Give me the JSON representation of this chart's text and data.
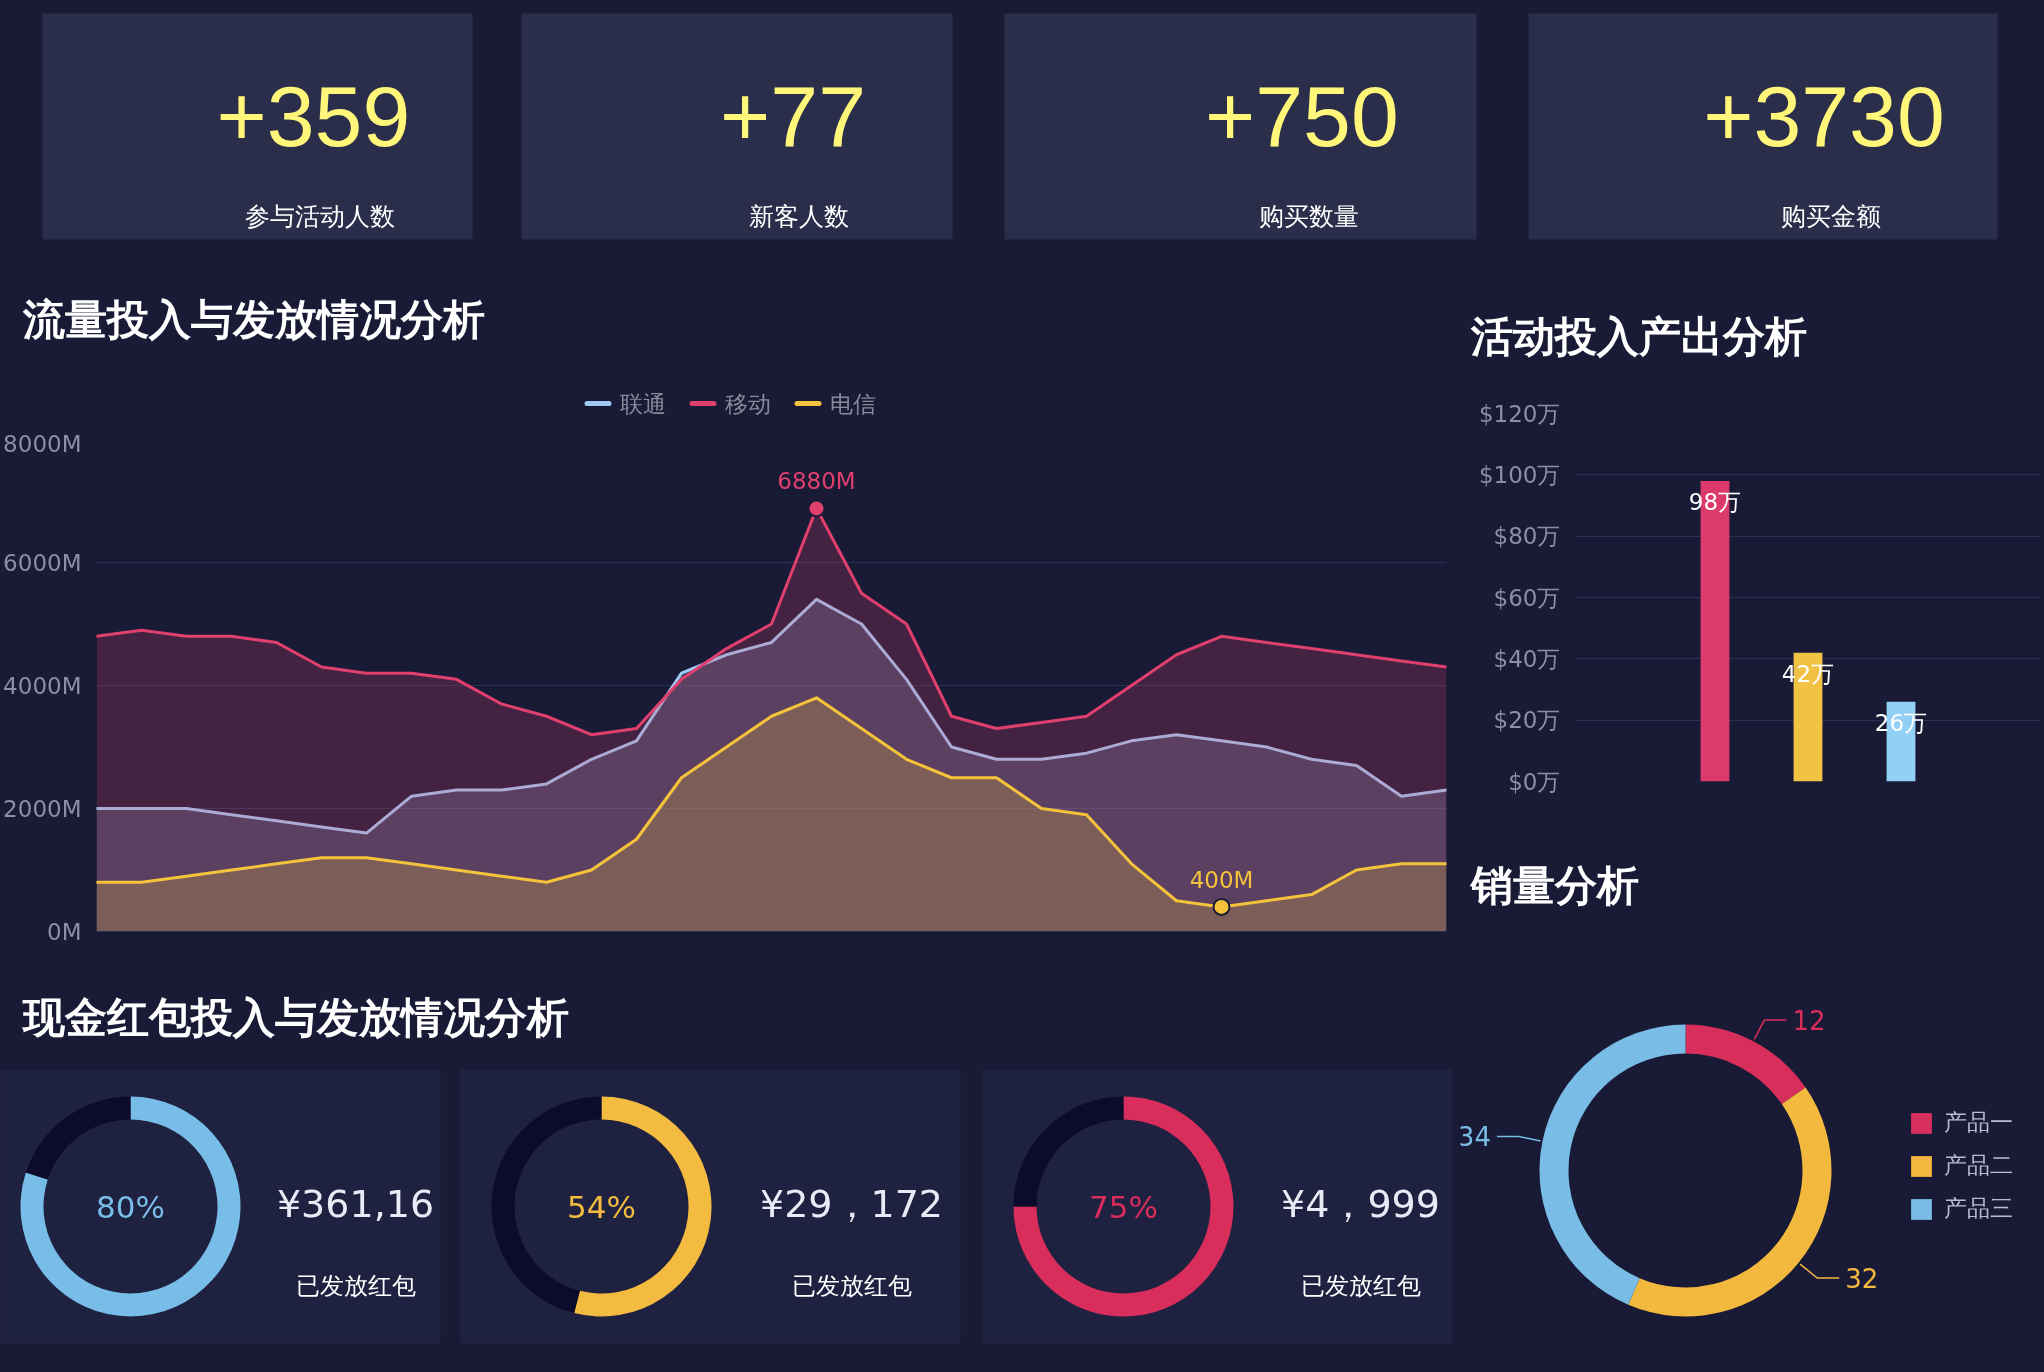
{
  "chart_data": [
    {
      "type": "other",
      "annotations": [
        "+359",
        "参与活动人数"
      ]
    },
    {
      "type": "other",
      "annotations": [
        "+77",
        "新客人数"
      ]
    },
    {
      "type": "other",
      "annotations": [
        "+750",
        "购买数量"
      ]
    },
    {
      "type": "other",
      "annotations": [
        "+3730",
        "购买金额"
      ]
    },
    {
      "type": "area",
      "title": "流量投入与发放情况分析",
      "categories": [
        null,
        null,
        null,
        null,
        null,
        null,
        null,
        null,
        null,
        null,
        null,
        null,
        null,
        null,
        null,
        null,
        null,
        null,
        null,
        null,
        null,
        null,
        null,
        null,
        null,
        null,
        null,
        null,
        null,
        null,
        null
      ],
      "series": [
        {
          "name": "联通",
          "color": "#9ec9f2",
          "values": [
            2000,
            2000,
            2000,
            1900,
            1800,
            1700,
            1600,
            2200,
            2300,
            2300,
            2400,
            2800,
            3100,
            4200,
            4500,
            4700,
            5400,
            5000,
            4100,
            3000,
            2800,
            2800,
            2900,
            3100,
            3200,
            3100,
            3000,
            2800,
            2700,
            2200,
            2300
          ]
        },
        {
          "name": "移动",
          "color": "#e0406e",
          "values": [
            4800,
            4900,
            4800,
            4800,
            4700,
            4300,
            4200,
            4200,
            4100,
            3700,
            3500,
            3200,
            3300,
            4100,
            4600,
            5000,
            6880,
            5500,
            5000,
            3500,
            3300,
            3400,
            3500,
            4000,
            4500,
            4800,
            4700,
            4600,
            4500,
            4400,
            4300
          ],
          "value_labels": [
            null,
            null,
            null,
            null,
            null,
            null,
            null,
            null,
            null,
            null,
            null,
            null,
            null,
            null,
            null,
            null,
            "6880M",
            null,
            null,
            null,
            null,
            null,
            null,
            null,
            null,
            null,
            null,
            null,
            null,
            null,
            null
          ]
        },
        {
          "name": "电信",
          "color": "#f5c33b",
          "values": [
            800,
            800,
            900,
            1000,
            1100,
            1200,
            1200,
            1100,
            1000,
            900,
            800,
            1000,
            1500,
            2500,
            3000,
            3500,
            3800,
            3300,
            2800,
            2500,
            2500,
            2000,
            1900,
            1100,
            500,
            400,
            500,
            600,
            1000,
            1100,
            1100
          ],
          "value_labels": [
            null,
            null,
            null,
            null,
            null,
            null,
            null,
            null,
            null,
            null,
            null,
            null,
            null,
            null,
            null,
            null,
            null,
            null,
            null,
            null,
            null,
            null,
            null,
            null,
            null,
            "400M",
            null,
            null,
            null,
            null,
            null
          ]
        }
      ],
      "ylim": [
        0,
        8000
      ],
      "yticks": [
        {
          "value": 0,
          "label": "0M"
        },
        {
          "value": 2000,
          "label": "2000M"
        },
        {
          "value": 4000,
          "label": "4000M"
        },
        {
          "value": 6000,
          "label": "6000M"
        },
        {
          "value": 8000,
          "label": "8000M"
        }
      ],
      "grid": "y",
      "legend": "top",
      "tick_labels": "y"
    },
    {
      "type": "bar",
      "title": "活动投入产出分析",
      "categories": [
        null,
        null,
        null
      ],
      "values": [
        98,
        42,
        26
      ],
      "colors": [
        "#dc3a6c",
        "#f2c244",
        "#93d0f7"
      ],
      "value_labels": [
        "98万",
        "42万",
        "26万"
      ],
      "ylim": [
        0,
        120
      ],
      "yticks": [
        {
          "value": 0,
          "label": "$0万"
        },
        {
          "value": 20,
          "label": "$20万"
        },
        {
          "value": 40,
          "label": "$40万"
        },
        {
          "value": 60,
          "label": "$60万"
        },
        {
          "value": 80,
          "label": "$80万"
        },
        {
          "value": 100,
          "label": "$100万"
        },
        {
          "value": 120,
          "label": "$120万"
        }
      ],
      "grid": "y",
      "tick_labels": "y"
    },
    {
      "type": "donut",
      "title": "销量分析",
      "categories": [
        "产品一",
        "产品二",
        "产品三"
      ],
      "values": [
        12,
        32,
        34
      ],
      "colors": [
        "#d82e5b",
        "#f2b93e",
        "#79bce6"
      ],
      "data_labels": true,
      "legend": "right"
    },
    {
      "type": "other",
      "title": "现金红包投入与发放情况分析"
    },
    {
      "type": "donut",
      "categories": [
        null,
        null
      ],
      "values": [
        80,
        20
      ],
      "colors": [
        "#78bde8",
        "#0c0b2c"
      ],
      "annotations": [
        "80%",
        "¥361,16",
        "已发放红包"
      ]
    },
    {
      "type": "donut",
      "categories": [
        null,
        null
      ],
      "values": [
        54,
        46
      ],
      "colors": [
        "#f3bb3f",
        "#0c0b2c"
      ],
      "annotations": [
        "54%",
        "¥29，172",
        "已发放红包"
      ]
    },
    {
      "type": "donut",
      "categories": [
        null,
        null
      ],
      "values": [
        75,
        25
      ],
      "colors": [
        "#d92d5c",
        "#0c0b2c"
      ],
      "annotations": [
        "75%",
        "¥4，999",
        "已发放红包"
      ]
    }
  ]
}
